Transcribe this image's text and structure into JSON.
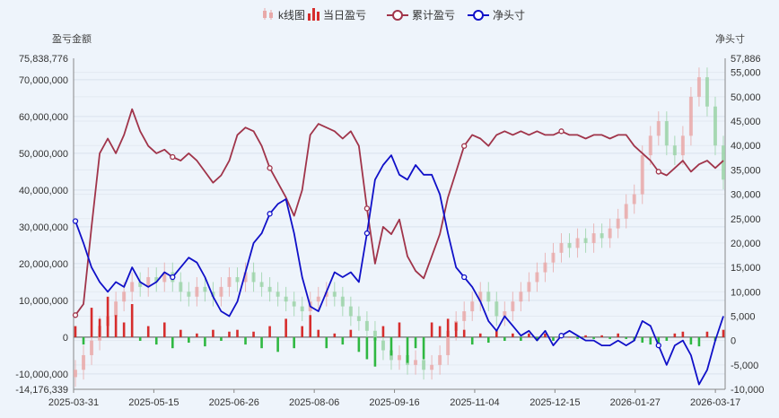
{
  "chart_data": {
    "type": "line",
    "legend": {
      "placement": "top-center",
      "items": [
        {
          "name": "k线图",
          "color": "#e8a9a9",
          "icon": "candlestick-icon"
        },
        {
          "name": "当日盈亏",
          "color": "#d62d2d",
          "icon": "bar-icon"
        },
        {
          "name": "累计盈亏",
          "color": "#a0344a",
          "icon": "line-circle-icon"
        },
        {
          "name": "净头寸",
          "color": "#1010c8",
          "icon": "line-circle-icon"
        }
      ]
    },
    "left_axis": {
      "title": "盈亏金额",
      "min": -14176339,
      "max": 75838776,
      "ticks": [
        -10000000,
        0,
        10000000,
        20000000,
        30000000,
        40000000,
        50000000,
        60000000,
        70000000
      ],
      "tick_labels": [
        "-10,000,000",
        "0",
        "10,000,000",
        "20,000,000",
        "30,000,000",
        "40,000,000",
        "50,000,000",
        "60,000,000",
        "70,000,000"
      ],
      "min_label": "-14,176,339",
      "max_label": "75,838,776"
    },
    "right_axis": {
      "title": "净头寸",
      "min": -10000,
      "max": 57886,
      "ticks": [
        -10000,
        -5000,
        0,
        5000,
        10000,
        15000,
        20000,
        25000,
        30000,
        35000,
        40000,
        45000,
        50000,
        55000
      ],
      "tick_labels": [
        "-10,000",
        "-5,000",
        "0",
        "5,000",
        "10,000",
        "15,000",
        "20,000",
        "25,000",
        "30,000",
        "35,000",
        "40,000",
        "45,000",
        "50,000",
        "55,000"
      ],
      "max_label": "57,886"
    },
    "x_axis": {
      "tick_labels": [
        "2025-03-31",
        "2025-05-15",
        "2025-06-26",
        "2025-08-06",
        "2025-09-16",
        "2025-11-04",
        "2025-12-15",
        "2026-01-27",
        "2026-03-17"
      ]
    },
    "series": [
      {
        "name": "累计盈亏",
        "axis": "left",
        "color": "#a0344a",
        "values": [
          6000000,
          9000000,
          30000000,
          50000000,
          54000000,
          50000000,
          55000000,
          62000000,
          56000000,
          52000000,
          50000000,
          51000000,
          49000000,
          48000000,
          50000000,
          48000000,
          45000000,
          42000000,
          44000000,
          48000000,
          55000000,
          57000000,
          56000000,
          52000000,
          46000000,
          42000000,
          38000000,
          33000000,
          40000000,
          55000000,
          58000000,
          57000000,
          56000000,
          54000000,
          56000000,
          52000000,
          35000000,
          20000000,
          30000000,
          28000000,
          32000000,
          22000000,
          18000000,
          16000000,
          22000000,
          28000000,
          38000000,
          45000000,
          52000000,
          55000000,
          54000000,
          52000000,
          55000000,
          56000000,
          55000000,
          56000000,
          55000000,
          56000000,
          55000000,
          55000000,
          56000000,
          55000000,
          55000000,
          54000000,
          55000000,
          55000000,
          54000000,
          55000000,
          55000000,
          52000000,
          50000000,
          48000000,
          45000000,
          44000000,
          46000000,
          48000000,
          45000000,
          47000000,
          48000000,
          46000000,
          48000000
        ]
      },
      {
        "name": "净头寸",
        "axis": "right",
        "color": "#1010c8",
        "values": [
          24500,
          20000,
          15000,
          12000,
          10000,
          12000,
          11000,
          15000,
          12000,
          11000,
          12000,
          14000,
          13000,
          15000,
          17000,
          16000,
          13000,
          9000,
          6000,
          5000,
          8000,
          14000,
          20000,
          22000,
          26000,
          28000,
          29000,
          22000,
          13000,
          7000,
          6000,
          10000,
          14000,
          13000,
          14000,
          12000,
          22000,
          33000,
          36000,
          38000,
          34000,
          33000,
          36000,
          34000,
          34000,
          30000,
          22000,
          15000,
          13000,
          11000,
          8000,
          4000,
          2000,
          5000,
          3000,
          1000,
          2000,
          0,
          2000,
          -1000,
          1000,
          2000,
          1000,
          0,
          0,
          -1000,
          -1000,
          0,
          -1000,
          0,
          4000,
          3000,
          -1000,
          -5000,
          -1000,
          0,
          -3000,
          -9000,
          -6000,
          0,
          5000
        ]
      }
    ],
    "daily_pnl": {
      "name": "当日盈亏",
      "axis": "left",
      "positive_color": "#d62d2d",
      "negative_color": "#2fb842",
      "values": [
        3000000,
        -2000000,
        8000000,
        5000000,
        11000000,
        6000000,
        4000000,
        9000000,
        -1000000,
        3000000,
        -2000000,
        4000000,
        -3000000,
        2000000,
        -1500000,
        1000000,
        -2500000,
        2000000,
        -1000000,
        1500000,
        2000000,
        -2000000,
        1500000,
        -3000000,
        3000000,
        -4000000,
        5000000,
        -3000000,
        3000000,
        6000000,
        2000000,
        -3000000,
        1000000,
        -2000000,
        2000000,
        -4000000,
        -6000000,
        -8000000,
        3000000,
        -5000000,
        4000000,
        -7000000,
        -3000000,
        -6000000,
        4000000,
        3000000,
        5000000,
        4000000,
        2000000,
        -2000000,
        1000000,
        -1500000,
        2000000,
        -1000000,
        1000000,
        -1000000,
        1000000,
        -1000000,
        1000000,
        -1000000,
        1000000,
        0,
        -500000,
        500000,
        -500000,
        500000,
        -500000,
        1000000,
        -500000,
        -1000000,
        -1500000,
        -2000000,
        -2500000,
        -1000000,
        1000000,
        1500000,
        -2000000,
        -2500000,
        1500000,
        -1000000,
        2000000
      ]
    },
    "kline": {
      "name": "k线图",
      "axis": "right",
      "up_color": "#e8a9a9",
      "down_color": "#9bd3a8",
      "closes": [
        -6000,
        -3000,
        0,
        3000,
        5000,
        8000,
        10000,
        12000,
        11000,
        13000,
        12000,
        14000,
        12000,
        10000,
        9000,
        11000,
        10000,
        9000,
        11000,
        13000,
        12000,
        14000,
        12000,
        11000,
        10000,
        9000,
        8000,
        7000,
        6000,
        8000,
        9000,
        10000,
        9000,
        7000,
        5000,
        4000,
        2000,
        0,
        -2000,
        -4000,
        -3000,
        -5000,
        -4000,
        -6000,
        -5000,
        -3000,
        2000,
        4000,
        6000,
        8000,
        10000,
        8000,
        5000,
        6000,
        8000,
        10000,
        12000,
        14000,
        16000,
        18000,
        20000,
        19000,
        21000,
        20000,
        22000,
        21000,
        23000,
        25000,
        28000,
        30000,
        38000,
        42000,
        45000,
        40000,
        38000,
        42000,
        50000,
        54000,
        48000,
        40000,
        33000
      ]
    }
  }
}
